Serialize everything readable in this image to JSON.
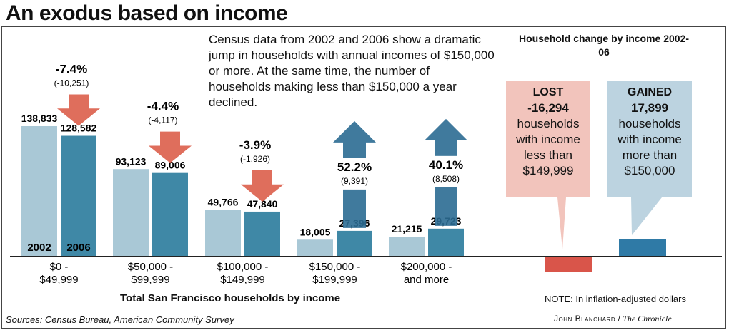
{
  "header": {
    "title": "An exodus based on income"
  },
  "intro": "Census data from 2002 and 2006 show a dramatic jump in households with annual incomes of $150,000 or more. At the same time, the number of households making less than $150,000 a year declined.",
  "chart_data": [
    {
      "type": "bar",
      "categories": [
        "$0 - $49,999",
        "$50,000 - $99,999",
        "$100,000 - $149,999",
        "$150,000 - $199,999",
        "$200,000 - and more"
      ],
      "category_lines": [
        [
          "$0 -",
          "$49,999"
        ],
        [
          "$50,000 -",
          "$99,999"
        ],
        [
          "$100,000 -",
          "$149,999"
        ],
        [
          "$150,000 -",
          "$199,999"
        ],
        [
          "$200,000 -",
          "and more"
        ]
      ],
      "series": [
        {
          "name": "2002",
          "values": [
            138833,
            93123,
            49766,
            18005,
            21215
          ],
          "labels": [
            "138,833",
            "93,123",
            "49,766",
            "18,005",
            "21,215"
          ]
        },
        {
          "name": "2006",
          "values": [
            128582,
            89006,
            47840,
            27396,
            29723
          ],
          "labels": [
            "128,582",
            "89,006",
            "47,840",
            "27,396",
            "29,723"
          ]
        }
      ],
      "changes": [
        {
          "pct": "-7.4%",
          "abs": "(-10,251)",
          "direction": "down"
        },
        {
          "pct": "-4.4%",
          "abs": "(-4,117)",
          "direction": "down"
        },
        {
          "pct": "-3.9%",
          "abs": "(-1,926)",
          "direction": "down"
        },
        {
          "pct": "52.2%",
          "abs": "(9,391)",
          "direction": "up"
        },
        {
          "pct": "40.1%",
          "abs": "(8,508)",
          "direction": "up"
        }
      ],
      "xlabel": "Total San Francisco households by income",
      "ylim": [
        0,
        140000
      ],
      "colors": {
        "bar2002": "#a9c8d6",
        "bar2006": "#3f88a6",
        "down_arrow": "#d9553f",
        "up_arrow": "#2b6b92"
      }
    },
    {
      "type": "bar",
      "title": "Household change by income 2002-06",
      "categories": [
        "LOST",
        "GAINED"
      ],
      "values": [
        -16294,
        17899
      ],
      "lost": {
        "head": "LOST",
        "num": "-16,294",
        "lines": [
          "households",
          "with income",
          "less than",
          "$149,999"
        ]
      },
      "gained": {
        "head": "GAINED",
        "num": "17,899",
        "lines": [
          "households",
          "with income",
          "more than",
          "$150,000"
        ]
      },
      "colors": {
        "lost_box": "#f2c4bc",
        "lost_bar": "#d9554a",
        "gained_box": "#bcd3e0",
        "gained_bar": "#2f7aa6"
      }
    }
  ],
  "footer": {
    "note": "NOTE: In inflation-adjusted dollars",
    "sources": "Sources: Census Bureau, American Community Survey",
    "credit_name": "John Blanchard",
    "credit_sep": " / ",
    "credit_org": "The Chronicle"
  }
}
